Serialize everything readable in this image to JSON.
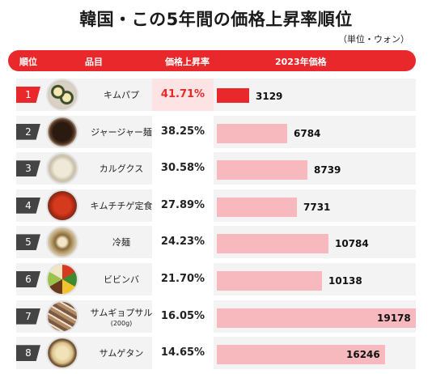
{
  "title": "韓国・この5年間の価格上昇率順位",
  "unit_note": "（単位・ウォン）",
  "headers": {
    "rank": "順位",
    "item": "品目",
    "rate": "価格上昇率",
    "price": "2023年価格"
  },
  "colors": {
    "accent": "#e8282b",
    "bar": "#f7b9bd",
    "rank_badge": "#444444"
  },
  "chart_data": {
    "type": "bar",
    "title": "韓国・この5年間の価格上昇率順位",
    "unit": "ウォン",
    "categories": [
      "キムパプ",
      "ジャージャー麺",
      "カルグクス",
      "キムチチゲ定食",
      "冷麺",
      "ビビンバ",
      "サムギョプサル",
      "サムゲタン"
    ],
    "series": [
      {
        "name": "2023年価格",
        "values": [
          3129,
          6784,
          8739,
          7731,
          10784,
          10138,
          19178,
          16246
        ]
      },
      {
        "name": "価格上昇率",
        "values": [
          41.71,
          38.25,
          30.58,
          27.89,
          24.23,
          21.7,
          16.05,
          14.65
        ]
      }
    ],
    "xlim": [
      0,
      19178
    ]
  },
  "rows": [
    {
      "rank": "1",
      "name": "キムパプ",
      "sub": "",
      "rate": "41.71%",
      "price": "3129",
      "icon": "kimbap-icon"
    },
    {
      "rank": "2",
      "name": "ジャージャー麺",
      "sub": "",
      "rate": "38.25%",
      "price": "6784",
      "icon": "jajangmyeon-icon"
    },
    {
      "rank": "3",
      "name": "カルグクス",
      "sub": "",
      "rate": "30.58%",
      "price": "8739",
      "icon": "kalguksu-icon"
    },
    {
      "rank": "4",
      "name": "キムチチゲ定食",
      "sub": "",
      "rate": "27.89%",
      "price": "7731",
      "icon": "kimchi-jjigae-icon"
    },
    {
      "rank": "5",
      "name": "冷麺",
      "sub": "",
      "rate": "24.23%",
      "price": "10784",
      "icon": "naengmyeon-icon"
    },
    {
      "rank": "6",
      "name": "ビビンバ",
      "sub": "",
      "rate": "21.70%",
      "price": "10138",
      "icon": "bibimbap-icon"
    },
    {
      "rank": "7",
      "name": "サムギョプサル",
      "sub": "(200g)",
      "rate": "16.05%",
      "price": "19178",
      "icon": "samgyeopsal-icon"
    },
    {
      "rank": "8",
      "name": "サムゲタン",
      "sub": "",
      "rate": "14.65%",
      "price": "16246",
      "icon": "samgyetang-icon"
    }
  ]
}
